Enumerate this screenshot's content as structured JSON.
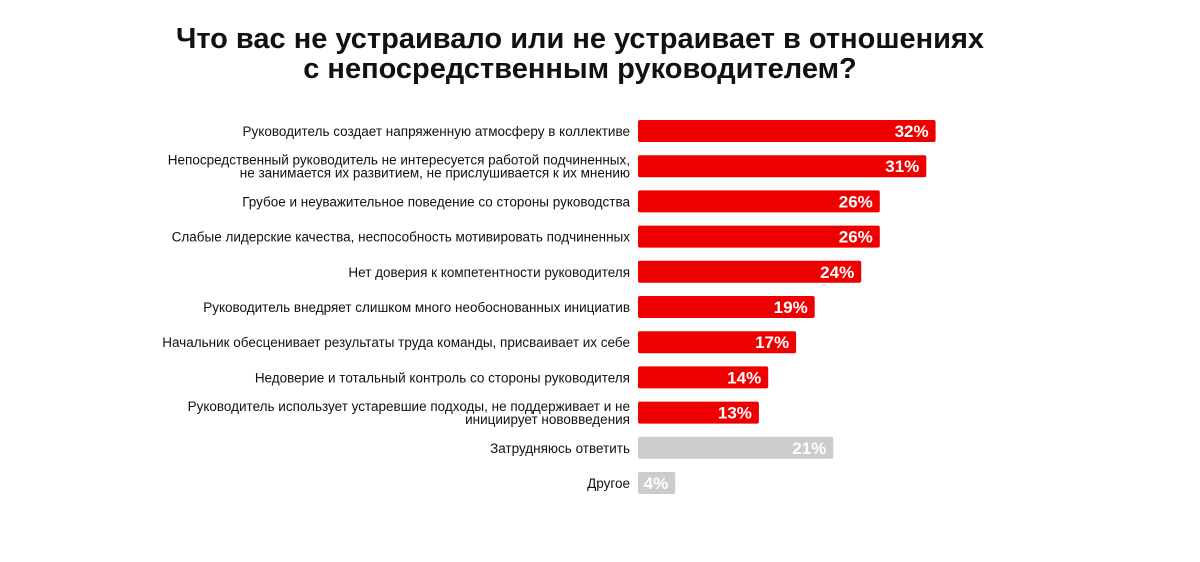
{
  "chart_data": {
    "type": "bar",
    "orientation": "horizontal",
    "title": [
      "Что вас не устраивало или не устраивает в отношениях",
      "с непосредственным руководителем?"
    ],
    "categories": [
      "Руководитель создает напряженную атмосферу в коллективе",
      "Непосредственный руководитель не интересуется работой подчиненных, не занимается их развитием, не прислушивается к их мнению",
      "Грубое и неуважительное поведение со стороны руководства",
      "Слабые лидерские качества, неспособность мотивировать подчиненных",
      "Нет доверия к компетентности руководителя",
      "Руководитель внедряет слишком много необоснованных инициатив",
      "Начальник обесценивает результаты труда команды, присваивает их себе",
      "Недоверие и тотальный контроль со стороны руководителя",
      "Руководитель использует устаревшие подходы, не поддерживает и не инициирует нововведения",
      "Затрудняюсь ответить",
      "Другое"
    ],
    "category_lines": [
      [
        "Руководитель создает напряженную атмосферу в коллективе"
      ],
      [
        "Непосредственный руководитель не интересуется работой подчиненных,",
        "не занимается их развитием, не прислушивается к их мнению"
      ],
      [
        "Грубое и неуважительное поведение со стороны руководства"
      ],
      [
        "Слабые лидерские качества, неспособность мотивировать подчиненных"
      ],
      [
        "Нет доверия к компетентности руководителя"
      ],
      [
        "Руководитель внедряет слишком много необоснованных инициатив"
      ],
      [
        "Начальник обесценивает результаты труда команды, присваивает их себе"
      ],
      [
        "Недоверие и тотальный контроль со стороны руководителя"
      ],
      [
        "Руководитель использует устаревшие подходы, не поддерживает и не",
        "инициирует нововведения"
      ],
      [
        "Затрудняюсь ответить"
      ],
      [
        "Другое"
      ]
    ],
    "values": [
      32,
      31,
      26,
      26,
      24,
      19,
      17,
      14,
      13,
      21,
      4
    ],
    "value_labels": [
      "32%",
      "31%",
      "26%",
      "26%",
      "24%",
      "19%",
      "17%",
      "14%",
      "13%",
      "21%",
      "4%"
    ],
    "bar_colors": [
      "#ee0000",
      "#ee0000",
      "#ee0000",
      "#ee0000",
      "#ee0000",
      "#ee0000",
      "#ee0000",
      "#ee0000",
      "#ee0000",
      "#cccccc",
      "#cccccc"
    ],
    "unit": "%",
    "grid": false,
    "legend": "none"
  }
}
